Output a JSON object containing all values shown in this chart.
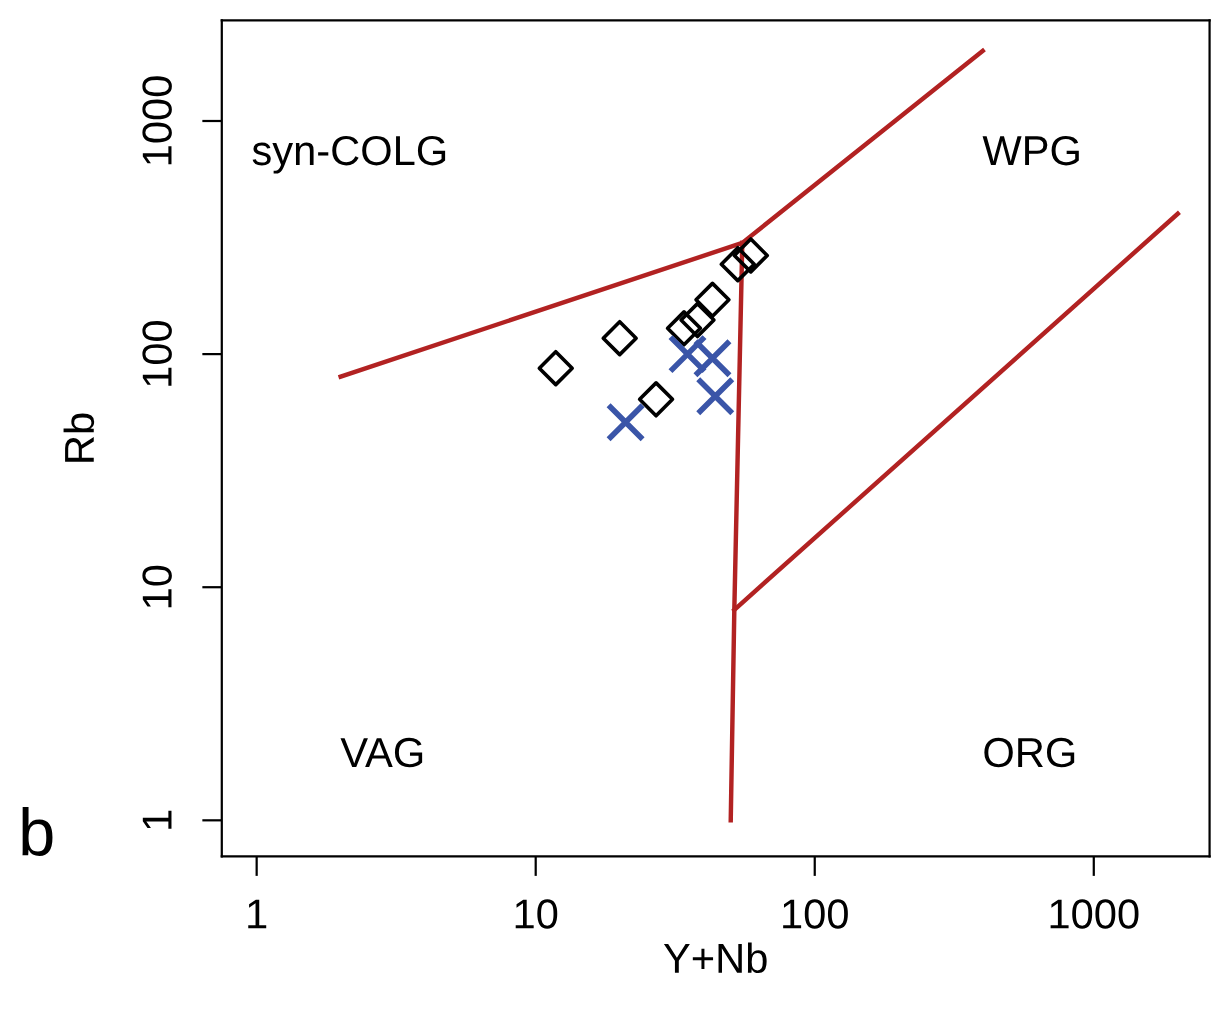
{
  "chart_data": {
    "type": "scatter",
    "xlabel": "Y+Nb",
    "ylabel": "Rb",
    "log": "xy",
    "xlim": [
      0.75,
      2600
    ],
    "ylim": [
      0.7,
      2700
    ],
    "xticks": [
      1,
      10,
      100,
      1000
    ],
    "yticks": [
      1,
      10,
      100,
      1000
    ],
    "grid": false,
    "legend": false,
    "annotations": [
      "syn-COLG",
      "WPG",
      "VAG",
      "ORG",
      "b"
    ],
    "series": [
      {
        "type": "line",
        "color": "#b22222",
        "x": [
          2,
          55,
          400
        ],
        "values": [
          80,
          300,
          2000
        ],
        "marker": "none"
      },
      {
        "type": "line",
        "color": "#b22222",
        "x": [
          55,
          51.5,
          50
        ],
        "values": [
          300,
          8,
          1
        ],
        "marker": "none"
      },
      {
        "type": "line",
        "color": "#b22222",
        "x": [
          51.5,
          2000
        ],
        "values": [
          8,
          400
        ],
        "marker": "none"
      },
      {
        "color": "#000000",
        "marker": "diamond",
        "x": [
          11.8,
          20,
          27,
          34,
          38,
          43,
          53,
          59
        ],
        "values": [
          87,
          117,
          64,
          129,
          140,
          171,
          243,
          265
        ]
      },
      {
        "color": "#3a55a8",
        "marker": "cross",
        "x": [
          21,
          35,
          43,
          44
        ],
        "values": [
          51,
          100,
          96,
          66
        ]
      }
    ]
  }
}
